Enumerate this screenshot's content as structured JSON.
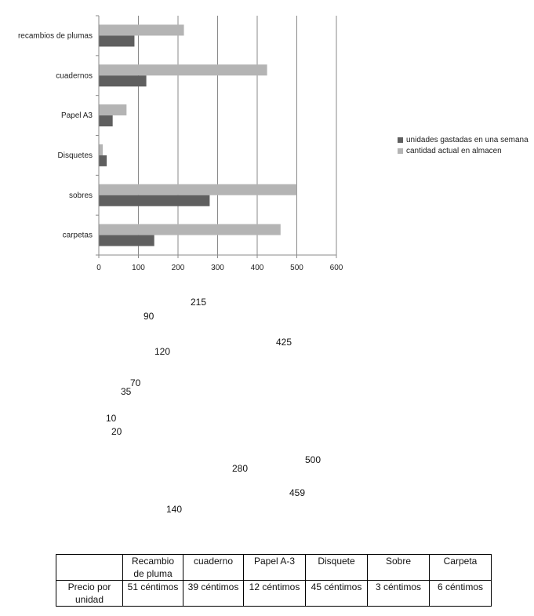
{
  "chart_data": {
    "type": "bar",
    "orientation": "horizontal",
    "categories": [
      "recambios de plumas",
      "cuadernos",
      "Papel A3",
      "Disquetes",
      "sobres",
      "carpetas"
    ],
    "series": [
      {
        "name": "unidades gastadas en una semana",
        "color": "#5f5f5f",
        "values": [
          90,
          120,
          35,
          20,
          280,
          140
        ]
      },
      {
        "name": "cantidad actual en almacen",
        "color": "#b4b4b4",
        "values": [
          215,
          425,
          70,
          10,
          500,
          459
        ]
      }
    ],
    "xlim": [
      0,
      600
    ],
    "xticks": [
      "0",
      "100",
      "200",
      "300",
      "400",
      "500",
      "600"
    ],
    "grid": "vertical",
    "legend_placement": "right"
  },
  "value_labels": [
    {
      "text": "215"
    },
    {
      "text": "90"
    },
    {
      "text": "425"
    },
    {
      "text": "120"
    },
    {
      "text": "70"
    },
    {
      "text": "35"
    },
    {
      "text": "10"
    },
    {
      "text": "20"
    },
    {
      "text": "500"
    },
    {
      "text": "280"
    },
    {
      "text": "459"
    },
    {
      "text": "140"
    }
  ],
  "price_table": {
    "header": [
      "",
      "Recambio de pluma",
      "cuaderno",
      "Papel A-3",
      "Disquete",
      "Sobre",
      "Carpeta"
    ],
    "row_label": "Precio por unidad",
    "values": [
      "51 céntimos",
      "39 céntimos",
      "12 céntimos",
      "45 céntimos",
      "3 céntimos",
      "6 céntimos"
    ]
  }
}
